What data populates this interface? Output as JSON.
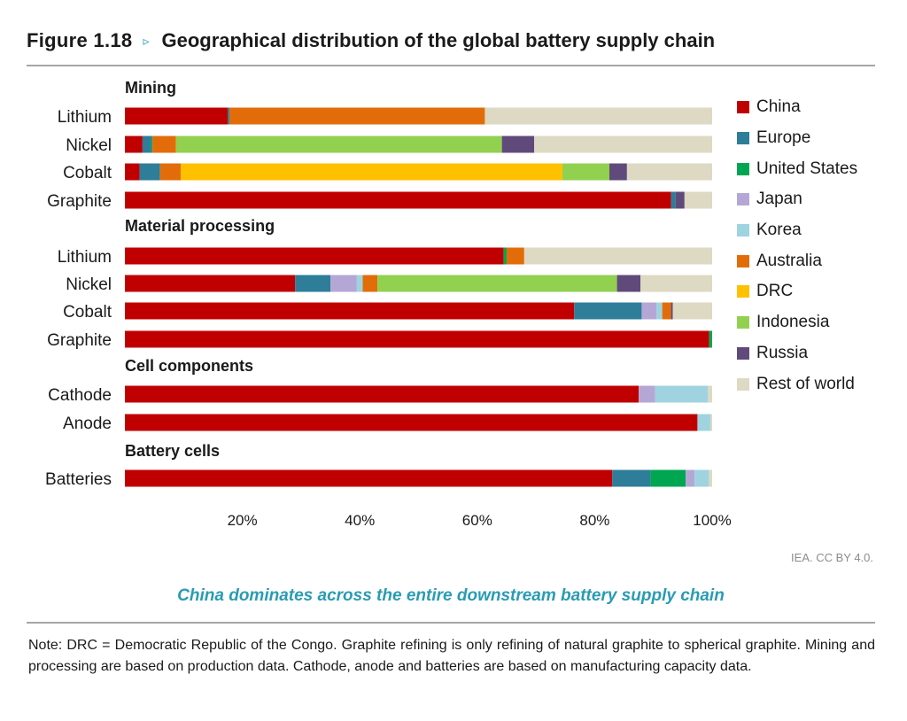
{
  "figure": {
    "number": "Figure 1.18",
    "arrow": "▹",
    "title": "Geographical distribution of the global battery supply chain"
  },
  "chart_data": {
    "type": "bar",
    "orientation": "horizontal",
    "stacked": true,
    "xlim": [
      0,
      100
    ],
    "x_ticks": [
      "20%",
      "40%",
      "60%",
      "80%",
      "100%"
    ],
    "x_tick_values": [
      20,
      40,
      60,
      80,
      100
    ],
    "grid": false,
    "legend_position": "right",
    "series": [
      {
        "name": "China",
        "color": "#c00000"
      },
      {
        "name": "Europe",
        "color": "#2e7d99"
      },
      {
        "name": "United States",
        "color": "#00a651"
      },
      {
        "name": "Japan",
        "color": "#b4a7d6"
      },
      {
        "name": "Korea",
        "color": "#9fd3e0"
      },
      {
        "name": "Australia",
        "color": "#e36c0a"
      },
      {
        "name": "DRC",
        "color": "#ffc000"
      },
      {
        "name": "Indonesia",
        "color": "#92d050"
      },
      {
        "name": "Russia",
        "color": "#604a7b"
      },
      {
        "name": "Rest of world",
        "color": "#ddd9c3"
      }
    ],
    "groups": [
      {
        "name": "Mining",
        "rows": [
          {
            "label": "Lithium",
            "values": [
              17.5,
              0.3,
              0,
              0,
              0,
              43.5,
              0,
              0,
              0,
              38.7
            ]
          },
          {
            "label": "Nickel",
            "values": [
              3,
              1.5,
              0.2,
              0,
              0,
              4,
              0,
              55.5,
              5.5,
              30.3
            ]
          },
          {
            "label": "Cobalt",
            "values": [
              2.5,
              3.5,
              0,
              0,
              0,
              3.5,
              65,
              8,
              3,
              14.5
            ]
          },
          {
            "label": "Graphite",
            "values": [
              93,
              0.8,
              0,
              0,
              0,
              0,
              0,
              0,
              1.5,
              4.7
            ]
          }
        ]
      },
      {
        "name": "Material processing",
        "rows": [
          {
            "label": "Lithium",
            "values": [
              64.5,
              0,
              0.5,
              0,
              0,
              3,
              0,
              0,
              0,
              32
            ]
          },
          {
            "label": "Nickel",
            "values": [
              29,
              6,
              0,
              4.5,
              1,
              2.5,
              0,
              40.8,
              4,
              12.2
            ]
          },
          {
            "label": "Cobalt",
            "values": [
              76.5,
              11.5,
              0,
              2.5,
              1,
              1.5,
              0,
              0,
              0.3,
              6.7
            ]
          },
          {
            "label": "Graphite",
            "values": [
              99.5,
              0,
              0.5,
              0,
              0,
              0,
              0,
              0,
              0,
              0
            ]
          }
        ]
      },
      {
        "name": "Cell components",
        "rows": [
          {
            "label": "Cathode",
            "values": [
              87.5,
              0,
              0,
              2.8,
              9,
              0,
              0,
              0,
              0,
              0.7
            ]
          },
          {
            "label": "Anode",
            "values": [
              97.5,
              0,
              0,
              0,
              2.2,
              0,
              0,
              0,
              0,
              0.3
            ]
          }
        ]
      },
      {
        "name": "Battery cells",
        "rows": [
          {
            "label": "Batteries",
            "values": [
              83,
              6.5,
              6,
              1.5,
              2.5,
              0,
              0,
              0,
              0,
              0.5
            ]
          }
        ]
      }
    ]
  },
  "source": "IEA. CC BY 4.0.",
  "caption": "China dominates across the entire downstream battery supply chain",
  "note": "Note: DRC = Democratic Republic of the Congo. Graphite refining is only refining of natural graphite to spherical graphite. Mining and processing are based on production data. Cathode, anode and batteries are based on manufacturing capacity data."
}
